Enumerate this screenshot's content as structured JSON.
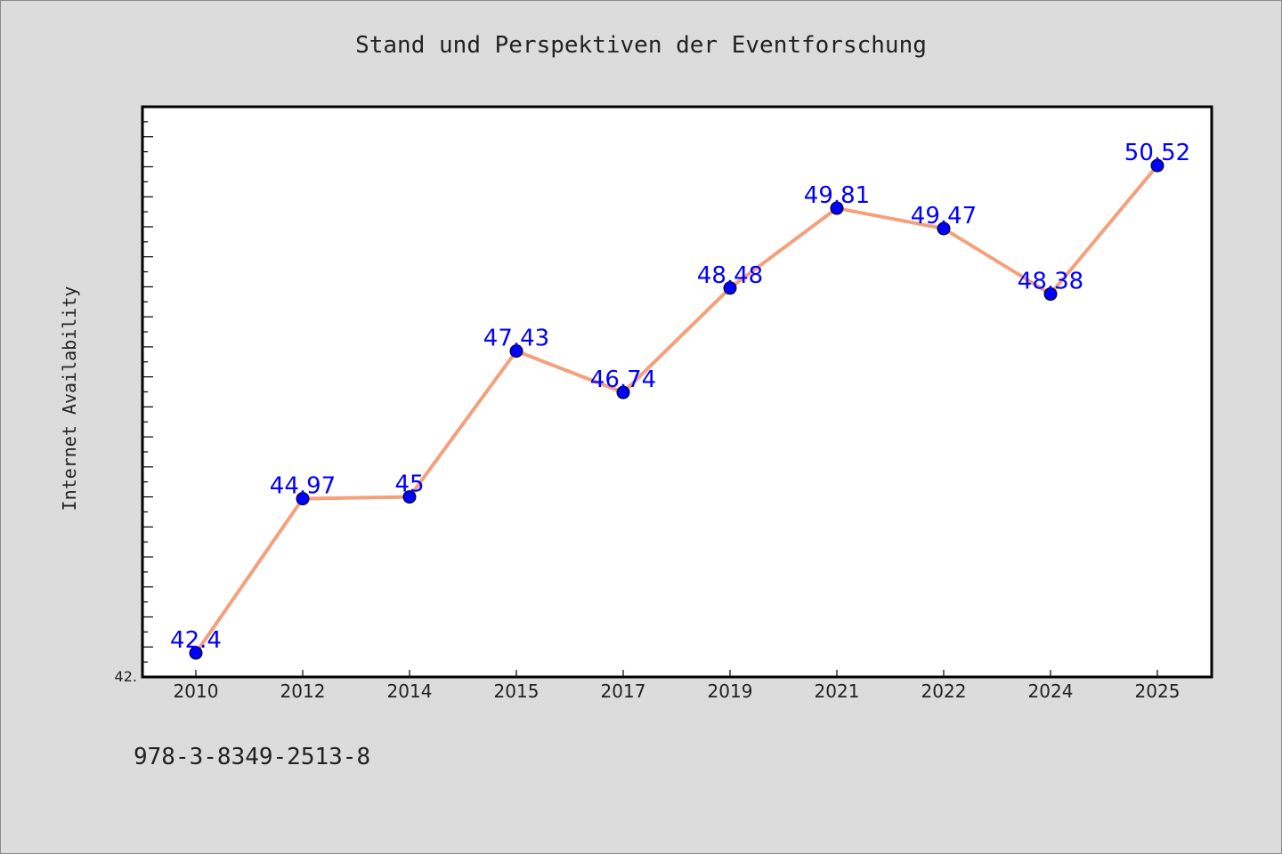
{
  "title": "Stand und Perspektiven der Eventforschung",
  "isbn": "978-3-8349-2513-8",
  "chart_data": {
    "type": "line",
    "title": "Stand und Perspektiven der Eventforschung",
    "xlabel": "",
    "ylabel": "Internet Availability",
    "categories": [
      "2010",
      "2012",
      "2014",
      "2015",
      "2017",
      "2019",
      "2021",
      "2022",
      "2024",
      "2025"
    ],
    "series": [
      {
        "values": [
          42.4,
          44.97,
          45,
          47.43,
          46.74,
          48.48,
          49.81,
          49.47,
          48.38,
          50.52
        ]
      }
    ],
    "data_labels": [
      "42.4",
      "44.97",
      "45",
      "47.43",
      "46.74",
      "48.48",
      "49.81",
      "49.47",
      "48.38",
      "50.52"
    ],
    "y_tick_labels": [
      "42."
    ],
    "ylim": [
      42.0,
      51.5
    ],
    "grid": false,
    "line_color": "#f4a07c",
    "marker_color": "#0000ff",
    "label_color": "#0000ff"
  }
}
